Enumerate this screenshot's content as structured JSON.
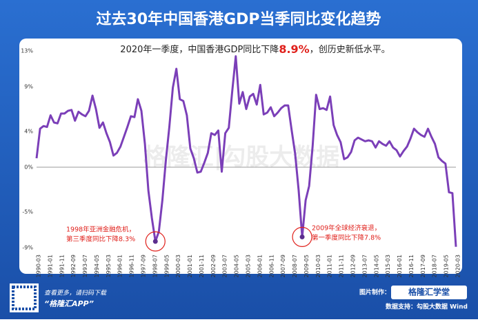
{
  "chart_data": {
    "type": "line",
    "title": "过去30年中国香港GDP当季同比变化趋势",
    "subtitle": {
      "before": "2020年一季度，中国香港GDP同比下降",
      "highlight": "8.9%",
      "after": "，创历史新低水平。"
    },
    "annotations": [
      {
        "lines": [
          "1998年亚洲金融危机，",
          "第三季度同比下降8.3%"
        ]
      },
      {
        "lines": [
          "2009年全球经济衰退，",
          "第一季度同比下降7.8%"
        ]
      }
    ],
    "watermark": "格隆汇|勾股大数据",
    "footer": {
      "scan": "查看更多，请扫码下载",
      "app": "“格隆汇APP”",
      "maker_label": "图片制作：",
      "maker": "格隆汇学堂",
      "source": "数据支持：勾股大数据 Wind"
    },
    "x": [
      "1990-03",
      "1990-06",
      "1990-09",
      "1990-12",
      "1991-03",
      "1991-06",
      "1991-09",
      "1991-12",
      "1992-03",
      "1992-06",
      "1992-09",
      "1992-12",
      "1993-03",
      "1993-06",
      "1993-09",
      "1993-12",
      "1994-03",
      "1994-06",
      "1994-09",
      "1994-12",
      "1995-03",
      "1995-06",
      "1995-09",
      "1995-12",
      "1996-03",
      "1996-06",
      "1996-09",
      "1996-12",
      "1997-03",
      "1997-06",
      "1997-09",
      "1997-12",
      "1998-03",
      "1998-06",
      "1998-09",
      "1998-12",
      "1999-03",
      "1999-06",
      "1999-09",
      "1999-12",
      "2000-03",
      "2000-06",
      "2000-09",
      "2000-12",
      "2001-03",
      "2001-06",
      "2001-09",
      "2001-12",
      "2002-03",
      "2002-06",
      "2002-09",
      "2002-12",
      "2003-03",
      "2003-06",
      "2003-09",
      "2003-12",
      "2004-03",
      "2004-06",
      "2004-09",
      "2004-12",
      "2005-03",
      "2005-06",
      "2005-09",
      "2005-12",
      "2006-03",
      "2006-06",
      "2006-09",
      "2006-12",
      "2007-03",
      "2007-06",
      "2007-09",
      "2007-12",
      "2008-03",
      "2008-06",
      "2008-09",
      "2008-12",
      "2009-03",
      "2009-06",
      "2009-09",
      "2009-12",
      "2010-03",
      "2010-06",
      "2010-09",
      "2010-12",
      "2011-03",
      "2011-06",
      "2011-09",
      "2011-12",
      "2012-03",
      "2012-06",
      "2012-09",
      "2012-12",
      "2013-03",
      "2013-06",
      "2013-09",
      "2013-12",
      "2014-03",
      "2014-06",
      "2014-09",
      "2014-12",
      "2015-03",
      "2015-06",
      "2015-09",
      "2015-12",
      "2016-03",
      "2016-06",
      "2016-09",
      "2016-12",
      "2017-03",
      "2017-06",
      "2017-09",
      "2017-12",
      "2018-03",
      "2018-06",
      "2018-09",
      "2018-12",
      "2019-03",
      "2019-06",
      "2019-09",
      "2019-12",
      "2020-03"
    ],
    "series": [
      {
        "color": "#7b3fb8",
        "values": [
          1.0,
          4.3,
          4.6,
          4.5,
          5.8,
          5.0,
          4.9,
          6.0,
          6.0,
          6.3,
          6.4,
          5.2,
          6.2,
          5.9,
          5.7,
          6.3,
          8.0,
          6.5,
          4.4,
          5.0,
          3.8,
          2.8,
          1.3,
          1.6,
          2.3,
          3.4,
          4.5,
          5.7,
          5.6,
          7.6,
          6.3,
          2.6,
          -2.6,
          -5.7,
          -8.3,
          -7.2,
          -3.7,
          0.8,
          4.5,
          8.9,
          11.0,
          7.6,
          7.4,
          5.8,
          2.1,
          1.0,
          -0.6,
          -0.5,
          0.5,
          1.6,
          3.8,
          3.6,
          4.1,
          -0.5,
          3.8,
          4.4,
          8.5,
          12.4,
          7.1,
          8.4,
          6.5,
          7.9,
          8.2,
          7.0,
          9.2,
          5.9,
          6.1,
          6.7,
          5.7,
          6.1,
          6.6,
          6.9,
          6.9,
          4.1,
          1.5,
          -2.6,
          -7.8,
          -3.7,
          -2.1,
          2.4,
          8.1,
          6.5,
          6.6,
          6.4,
          7.9,
          4.7,
          3.6,
          2.8,
          0.9,
          1.1,
          1.7,
          3.0,
          3.3,
          3.1,
          2.9,
          3.0,
          2.9,
          2.2,
          2.9,
          2.6,
          2.4,
          2.9,
          2.2,
          1.9,
          1.2,
          1.8,
          2.3,
          3.2,
          4.3,
          3.9,
          3.6,
          3.4,
          4.3,
          3.4,
          2.6,
          1.1,
          0.7,
          0.4,
          -2.8,
          -2.9,
          -8.9
        ]
      }
    ],
    "xticks": [
      "1990-03",
      "1991-01",
      "1991-11",
      "1992-09",
      "1993-07",
      "1994-05",
      "1995-03",
      "1996-01",
      "1996-11",
      "1997-09",
      "1998-07",
      "1999-05",
      "2000-03",
      "2001-01",
      "2001-11",
      "2002-09",
      "2003-07",
      "2004-05",
      "2005-03",
      "2006-01",
      "2006-11",
      "2007-09",
      "2008-07",
      "2009-05",
      "2010-03",
      "2011-01",
      "2011-11",
      "2012-09",
      "2013-07",
      "2014-05",
      "2015-03",
      "2016-01",
      "2016-11",
      "2017-09",
      "2018-07",
      "2019-05",
      "2020-03"
    ],
    "yticks": [
      {
        "value": -9,
        "label": "-9%"
      },
      {
        "value": -5,
        "label": "-5%"
      },
      {
        "value": 0,
        "label": "0%"
      },
      {
        "value": 4,
        "label": "4%"
      },
      {
        "value": 9,
        "label": "9%"
      },
      {
        "value": 13,
        "label": "13%"
      }
    ],
    "zero_line": true,
    "grid": false
  }
}
